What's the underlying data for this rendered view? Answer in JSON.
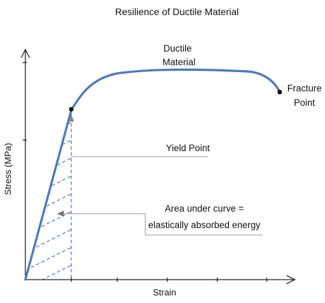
{
  "title": "Resilience of Ductile Material",
  "axes": {
    "x_label": "Strain",
    "y_label": "Stress (MPa)"
  },
  "annotations": {
    "ductile_line1": "Ductile",
    "ductile_line2": "Material",
    "fracture_line1": "Fracture",
    "fracture_line2": "Point",
    "yield_point": "Yield Point",
    "area_line1": "Area under curve =",
    "area_line2": "elastically absorbed energy"
  },
  "colors": {
    "curve": "#4a78c2",
    "axes": "#222222",
    "leader": "#777777",
    "text": "#111111"
  }
}
